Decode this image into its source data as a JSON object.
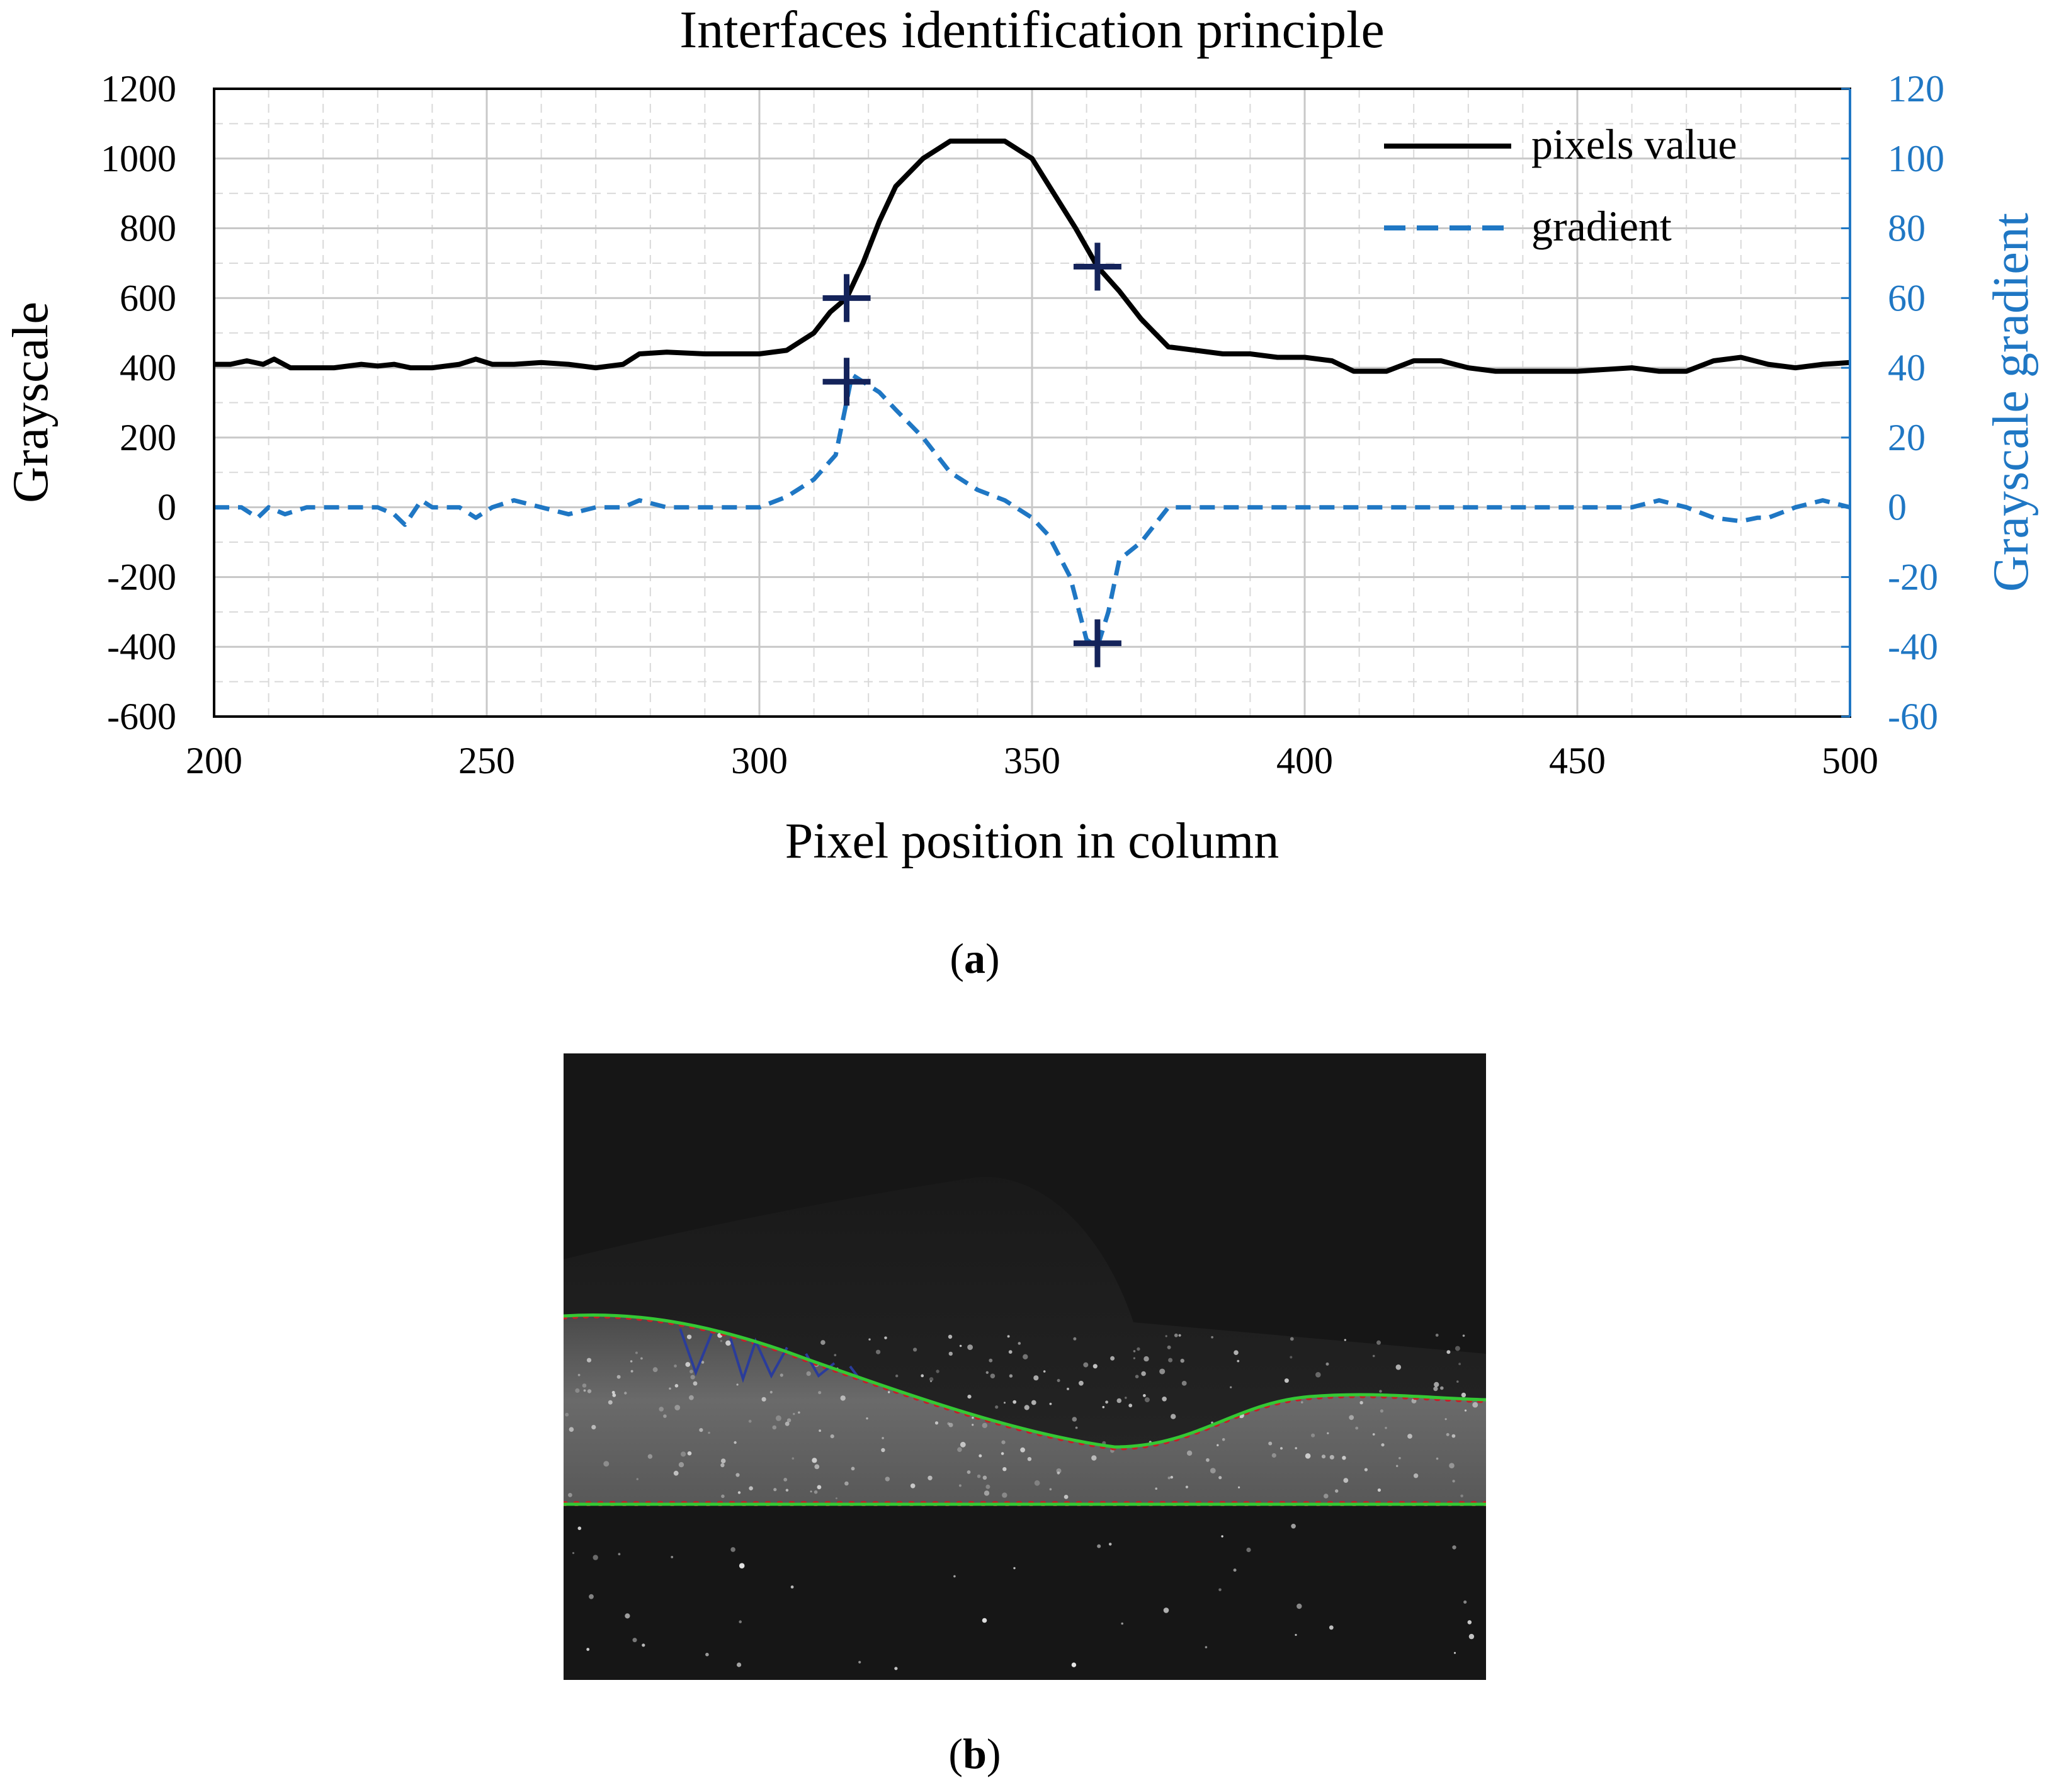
{
  "panel_a_label": "a",
  "panel_b_label": "b",
  "chart_data": {
    "type": "line",
    "title": "Interfaces identification principle",
    "xlabel": "Pixel position in column",
    "ylabel": "Grayscale",
    "y2label": "Grayscale gradient",
    "xlim": [
      200,
      500
    ],
    "ylim": [
      -600,
      1200
    ],
    "y2lim": [
      -60,
      120
    ],
    "xticks": [
      200,
      250,
      300,
      350,
      400,
      450,
      500
    ],
    "xtick_labels": [
      "200",
      "250",
      "300",
      "350",
      "400",
      "450",
      "500"
    ],
    "yticks": [
      -600,
      -400,
      -200,
      0,
      200,
      400,
      600,
      800,
      1000,
      1200
    ],
    "ytick_labels": [
      "-600",
      "-400",
      "-200",
      "0",
      "200",
      "400",
      "600",
      "800",
      "1000",
      "1200"
    ],
    "y2ticks": [
      -60,
      -40,
      -20,
      0,
      20,
      40,
      60,
      80,
      100,
      120
    ],
    "y2tick_labels": [
      "-60",
      "-40",
      "-20",
      "0",
      "20",
      "40",
      "60",
      "80",
      "100",
      "120"
    ],
    "grid": true,
    "legend": [
      "pixels value",
      "gradient"
    ],
    "legend_position": "top-right",
    "colors": {
      "pixels": "#000000",
      "gradient": "#1f77c4",
      "marker": "#14235a",
      "axis2": "#1f77c4",
      "grid": "#c8c8c8"
    },
    "series": [
      {
        "name": "pixels value",
        "axis": "left",
        "style": "solid",
        "x": [
          200,
          203,
          206,
          209,
          211,
          214,
          217,
          222,
          227,
          230,
          233,
          236,
          240,
          245,
          248,
          251,
          255,
          260,
          265,
          270,
          275,
          278,
          283,
          290,
          296,
          300,
          305,
          310,
          313,
          316,
          319,
          322,
          325,
          330,
          335,
          340,
          345,
          350,
          354,
          358,
          362,
          366,
          370,
          375,
          380,
          385,
          390,
          395,
          400,
          405,
          409,
          415,
          420,
          425,
          430,
          435,
          440,
          445,
          450,
          460,
          465,
          470,
          475,
          480,
          485,
          490,
          495,
          500
        ],
        "values": [
          410,
          410,
          420,
          410,
          425,
          400,
          400,
          400,
          410,
          405,
          410,
          400,
          400,
          410,
          425,
          410,
          410,
          415,
          410,
          400,
          410,
          440,
          445,
          440,
          440,
          440,
          450,
          500,
          560,
          600,
          700,
          820,
          920,
          1000,
          1050,
          1050,
          1050,
          1000,
          900,
          800,
          690,
          620,
          540,
          460,
          450,
          440,
          440,
          430,
          430,
          420,
          390,
          390,
          420,
          420,
          400,
          390,
          390,
          390,
          390,
          400,
          390,
          390,
          420,
          430,
          410,
          400,
          410,
          415
        ]
      },
      {
        "name": "gradient",
        "axis": "right",
        "style": "dashed",
        "x": [
          200,
          205,
          208,
          210,
          213,
          217,
          222,
          227,
          230,
          233,
          235,
          238,
          240,
          245,
          248,
          251,
          255,
          260,
          265,
          270,
          275,
          278,
          283,
          290,
          296,
          300,
          305,
          310,
          314,
          317,
          320,
          322,
          325,
          330,
          335,
          340,
          345,
          350,
          353,
          357,
          360,
          362,
          364,
          366,
          370,
          375,
          380,
          385,
          390,
          400,
          410,
          420,
          430,
          440,
          450,
          460,
          465,
          470,
          475,
          480,
          483,
          485,
          490,
          495,
          500
        ],
        "values": [
          0,
          0,
          -3,
          0,
          -2,
          0,
          0,
          0,
          0,
          -2,
          -5,
          2,
          0,
          0,
          -3,
          0,
          2,
          0,
          -2,
          0,
          0,
          2,
          0,
          0,
          0,
          0,
          3,
          8,
          15,
          38,
          35,
          33,
          28,
          20,
          10,
          5,
          2,
          -3,
          -8,
          -20,
          -38,
          -40,
          -30,
          -15,
          -10,
          0,
          0,
          0,
          0,
          0,
          0,
          0,
          0,
          0,
          0,
          0,
          2,
          0,
          -3,
          -4,
          -3,
          -3,
          0,
          2,
          0
        ]
      }
    ],
    "markers": [
      {
        "series": "pixels value",
        "x": 316,
        "y": 600
      },
      {
        "series": "pixels value",
        "x": 362,
        "y": 690
      },
      {
        "series": "gradient",
        "x": 316,
        "y": 36
      },
      {
        "series": "gradient",
        "x": 362,
        "y": -39
      }
    ]
  }
}
